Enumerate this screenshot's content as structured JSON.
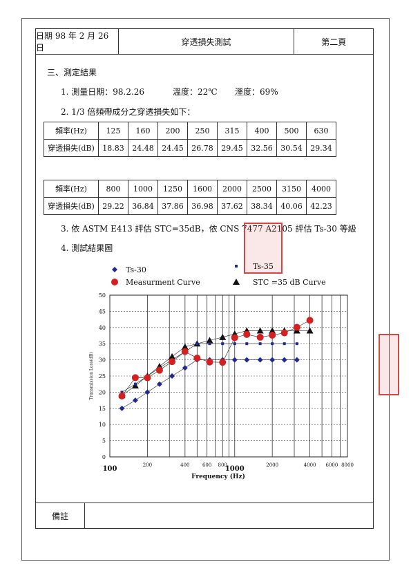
{
  "header": {
    "date": "日期 98 年 2 月 26 日",
    "title": "穿透損失測試",
    "page": "第二頁"
  },
  "section_title": "三、測定結果",
  "item1": {
    "prefix": "1. 測量日期：98.2.26",
    "temp": "溫度：22℃",
    "humidity": "溼度：69%"
  },
  "item2": "2.  1/3 倍頻帶成分之穿透損失如下：",
  "table1": {
    "row_label_freq": "頻率(Hz)",
    "row_label_loss": "穿透損失(dB)",
    "freqs": [
      "125",
      "160",
      "200",
      "250",
      "315",
      "400",
      "500",
      "630"
    ],
    "losses": [
      "18.83",
      "24.48",
      "24.45",
      "26.78",
      "29.45",
      "32.56",
      "30.54",
      "29.34"
    ]
  },
  "table2": {
    "row_label_freq": "頻率(Hz)",
    "row_label_loss": "穿透損失(dB)",
    "freqs": [
      "800",
      "1000",
      "1250",
      "1600",
      "2000",
      "2500",
      "3150",
      "4000"
    ],
    "losses": [
      "29.22",
      "36.84",
      "37.86",
      "36.98",
      "37.62",
      "38.34",
      "40.06",
      "42.23"
    ]
  },
  "item3": "3. 依 ASTM E413  評估 STC=35dB，依 CNS 7477 A2105  評估 Ts-30 等級",
  "item4": "4.  測試結果圖",
  "footer_label": "備註",
  "chart_data": {
    "type": "line",
    "xscale": "log",
    "xlabel": "Frequency (Hz)",
    "ylabel": "Transmission Loss(dB)",
    "ylim": [
      0,
      50
    ],
    "yticks": [
      "0",
      "5",
      "10",
      "15",
      "20",
      "25",
      "30",
      "35",
      "40",
      "45",
      "50"
    ],
    "xticks_small": [
      "200",
      "400",
      "600",
      "800",
      "2000",
      "4000",
      "6000",
      "8000"
    ],
    "xticks_large": [
      "100",
      "1000"
    ],
    "grid": true,
    "legend_position": "top",
    "x": [
      125,
      160,
      200,
      250,
      315,
      400,
      500,
      630,
      800,
      1000,
      1250,
      1600,
      2000,
      2500,
      3150,
      4000
    ],
    "series": [
      {
        "name": "Ts-30",
        "marker": "diamond",
        "color": "#1f2a8f",
        "x": [
          125,
          160,
          200,
          250,
          315,
          400,
          500,
          630,
          800,
          1000,
          1250,
          1600,
          2000,
          2500,
          3150
        ],
        "values": [
          15,
          17.5,
          20,
          22.5,
          25,
          27.5,
          30,
          30,
          30,
          30,
          30,
          30,
          30,
          30,
          30
        ]
      },
      {
        "name": "Ts-35",
        "marker": "square",
        "color": "#1f2a8f",
        "x": [
          125,
          160,
          200,
          250,
          315,
          400,
          500,
          630,
          800,
          1000,
          1250,
          1600,
          2000,
          2500,
          3150
        ],
        "values": [
          20,
          22.5,
          25,
          27.5,
          30,
          32.5,
          35,
          35,
          35,
          35,
          35,
          35,
          35,
          35,
          35
        ]
      },
      {
        "name": "Measurment Curve",
        "marker": "circle",
        "color": "#d42020",
        "x": [
          125,
          160,
          200,
          250,
          315,
          400,
          500,
          630,
          800,
          1000,
          1250,
          1600,
          2000,
          2500,
          3150,
          4000
        ],
        "values": [
          18.83,
          24.48,
          24.45,
          26.78,
          29.45,
          32.56,
          30.54,
          29.34,
          29.22,
          36.84,
          37.86,
          36.98,
          37.62,
          38.34,
          40.06,
          42.23
        ]
      },
      {
        "name": "STC =35 dB Curve",
        "marker": "triangle",
        "color": "#111111",
        "x": [
          125,
          160,
          200,
          250,
          315,
          400,
          500,
          630,
          800,
          1000,
          1250,
          1600,
          2000,
          2500,
          3150,
          4000
        ],
        "values": [
          19,
          22,
          25,
          28,
          31,
          34,
          35,
          36,
          37,
          38,
          39,
          39,
          39,
          39,
          39,
          39
        ]
      }
    ]
  }
}
